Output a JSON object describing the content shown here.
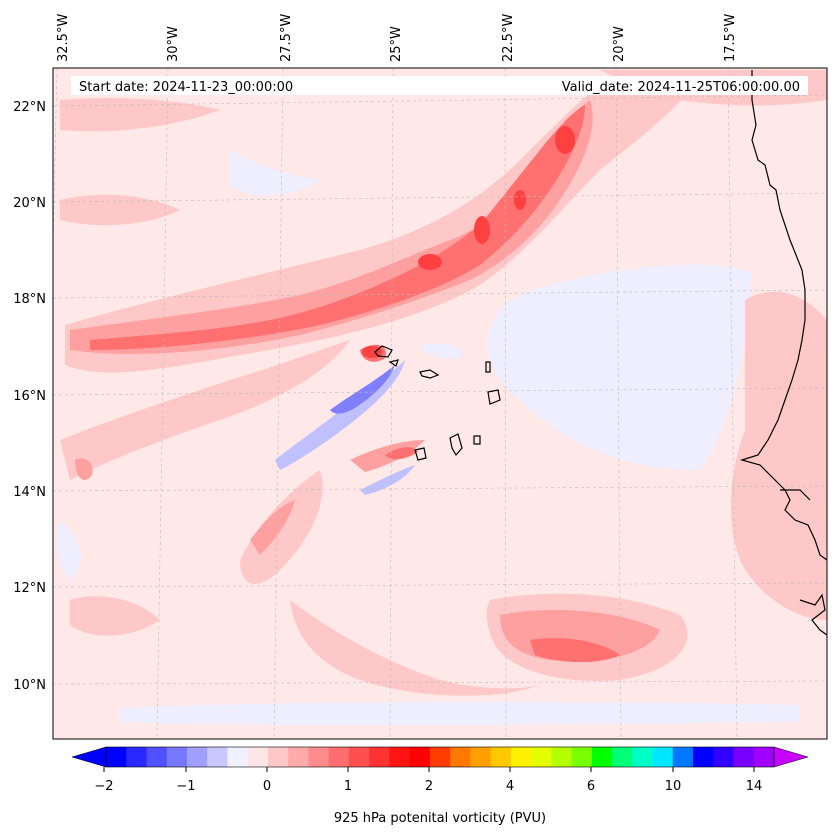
{
  "map": {
    "header": {
      "start_date": "Start date: 2024-11-23_00:00:00",
      "valid_date": "Valid_date: 2024-11-25T06:00:00.00"
    },
    "lon_labels": [
      "32.5°W",
      "30°W",
      "27.5°W",
      "25°W",
      "22.5°W",
      "20°W",
      "17.5°W"
    ],
    "lat_labels": [
      "22°N",
      "20°N",
      "18°N",
      "16°N",
      "14°N",
      "12°N",
      "10°N"
    ],
    "colorbar": {
      "label": "925 hPa potenital vorticity (PVU)",
      "tick_labels": [
        "−2",
        "−1",
        "0",
        "1",
        "2",
        "4",
        "6",
        "10",
        "14"
      ],
      "colors": [
        "#0000ff",
        "#2828ff",
        "#5050ff",
        "#7878ff",
        "#a0a0ff",
        "#c8c8ff",
        "#f0f0ff",
        "#ffe6e6",
        "#ffc8c8",
        "#ffaaaa",
        "#ff8c8c",
        "#ff6e6e",
        "#ff5050",
        "#ff3232",
        "#ff1414",
        "#ff0000",
        "#ff3c00",
        "#ff7800",
        "#ffa000",
        "#ffc800",
        "#fff000",
        "#e6ff00",
        "#b4ff00",
        "#78ff00",
        "#00ff00",
        "#00ff78",
        "#00ffc8",
        "#00e6ff",
        "#0078ff",
        "#0000ff",
        "#3200ff",
        "#7800ff",
        "#a000ff"
      ],
      "extend_low": "#0000ff",
      "extend_high": "#c800ff"
    },
    "field_colors": {
      "background": "#ffe8e8",
      "light_red": "#ffc8c8",
      "mid_red": "#ffa0a0",
      "red": "#ff7070",
      "strong_red": "#ff4040",
      "light_blue": "#eeeeff",
      "blue": "#c0c0ff",
      "deep_blue": "#8080ff"
    }
  }
}
